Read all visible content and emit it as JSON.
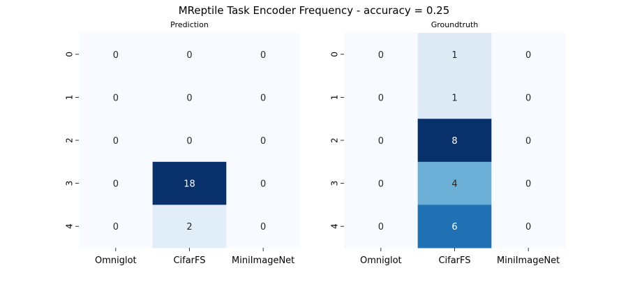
{
  "title": "MReptile Task Encoder Frequency - accuracy = 0.25",
  "chart_data": [
    {
      "type": "heatmap",
      "title": "Prediction",
      "x_categories": [
        "Omniglot",
        "CifarFS",
        "MiniImageNet"
      ],
      "y_categories": [
        "0",
        "1",
        "2",
        "3",
        "4"
      ],
      "values": [
        [
          0,
          0,
          0
        ],
        [
          0,
          0,
          0
        ],
        [
          0,
          0,
          0
        ],
        [
          0,
          18,
          0
        ],
        [
          0,
          2,
          0
        ]
      ],
      "colormap": "Blues",
      "cbar": false,
      "annot": true
    },
    {
      "type": "heatmap",
      "title": "Groundtruth",
      "x_categories": [
        "Omniglot",
        "CifarFS",
        "MiniImageNet"
      ],
      "y_categories": [
        "0",
        "1",
        "2",
        "3",
        "4"
      ],
      "values": [
        [
          0,
          1,
          0
        ],
        [
          0,
          1,
          0
        ],
        [
          0,
          8,
          0
        ],
        [
          0,
          4,
          0
        ],
        [
          0,
          6,
          0
        ]
      ],
      "colormap": "Blues",
      "cbar": false,
      "annot": true
    }
  ]
}
